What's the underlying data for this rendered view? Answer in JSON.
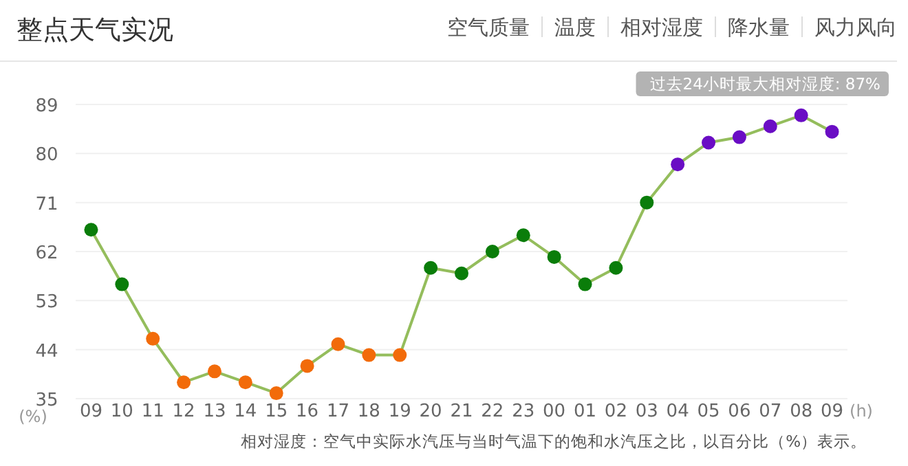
{
  "chart_data": {
    "type": "line",
    "title": "整点天气实况",
    "annotations": [
      "空气质量",
      "温度",
      "相对湿度",
      "降水量",
      "风力风向",
      "过去24小时最大相对湿度: 87%",
      "相对湿度：空气中实际水汽压与当时气温下的饱和水汽压之比，以百分比（%）表示。"
    ],
    "xlabel": "(h)",
    "ylabel": "(%)",
    "categories": [
      "09",
      "10",
      "11",
      "12",
      "13",
      "14",
      "15",
      "16",
      "17",
      "18",
      "19",
      "20",
      "21",
      "22",
      "23",
      "00",
      "01",
      "02",
      "03",
      "04",
      "05",
      "06",
      "07",
      "08",
      "09"
    ],
    "series": [
      {
        "color": "#94bd5c",
        "values": [
          66,
          56,
          46,
          38,
          40,
          38,
          36,
          41,
          45,
          43,
          43,
          59,
          58,
          62,
          65,
          61,
          56,
          59,
          71,
          78,
          82,
          83,
          85,
          87,
          84
        ],
        "colors": [
          "#0a7d0a",
          "#0a7d0a",
          "#f26b0a",
          "#f26b0a",
          "#f26b0a",
          "#f26b0a",
          "#f26b0a",
          "#f26b0a",
          "#f26b0a",
          "#f26b0a",
          "#f26b0a",
          "#0a7d0a",
          "#0a7d0a",
          "#0a7d0a",
          "#0a7d0a",
          "#0a7d0a",
          "#0a7d0a",
          "#0a7d0a",
          "#0a7d0a",
          "#6a0dc4",
          "#6a0dc4",
          "#6a0dc4",
          "#6a0dc4",
          "#6a0dc4",
          "#6a0dc4"
        ]
      }
    ],
    "ylim": [
      35,
      89
    ],
    "yticks": [
      35,
      44,
      53,
      62,
      71,
      80,
      89
    ],
    "grid": "y",
    "marker": "circle",
    "line_style": "solid"
  }
}
